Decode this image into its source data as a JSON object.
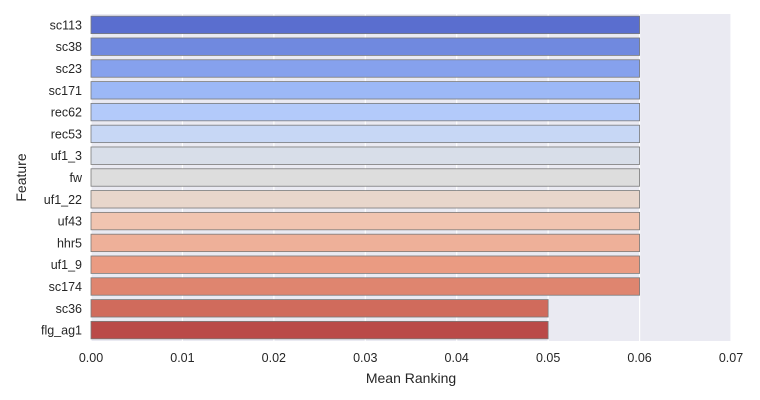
{
  "chart_data": {
    "type": "bar",
    "orientation": "horizontal",
    "title": "",
    "xlabel": "Mean Ranking",
    "ylabel": "Feature",
    "xlim": [
      0.0,
      0.07
    ],
    "xticks": [
      "0.00",
      "0.01",
      "0.02",
      "0.03",
      "0.04",
      "0.05",
      "0.06",
      "0.07"
    ],
    "xtick_values": [
      0.0,
      0.01,
      0.02,
      0.03,
      0.04,
      0.05,
      0.06,
      0.07
    ],
    "grid": true,
    "categories": [
      "sc113",
      "sc38",
      "sc23",
      "sc171",
      "rec62",
      "rec53",
      "uf1_3",
      "fw",
      "uf1_22",
      "uf43",
      "hhr5",
      "uf1_9",
      "sc174",
      "sc36",
      "flg_ag1"
    ],
    "values": [
      0.06,
      0.06,
      0.06,
      0.06,
      0.06,
      0.06,
      0.06,
      0.06,
      0.06,
      0.06,
      0.06,
      0.06,
      0.06,
      0.05,
      0.05
    ],
    "colors": [
      "#5a6ecf",
      "#7089df",
      "#86a1ed",
      "#9cb8f6",
      "#b3cafa",
      "#c7d7f5",
      "#d8dee9",
      "#dddddd",
      "#e8d6cb",
      "#f1c4b0",
      "#eeb099",
      "#ea9b82",
      "#df856f",
      "#d06b5c",
      "#ba4a48"
    ],
    "background_color": "#eaeaf2"
  }
}
